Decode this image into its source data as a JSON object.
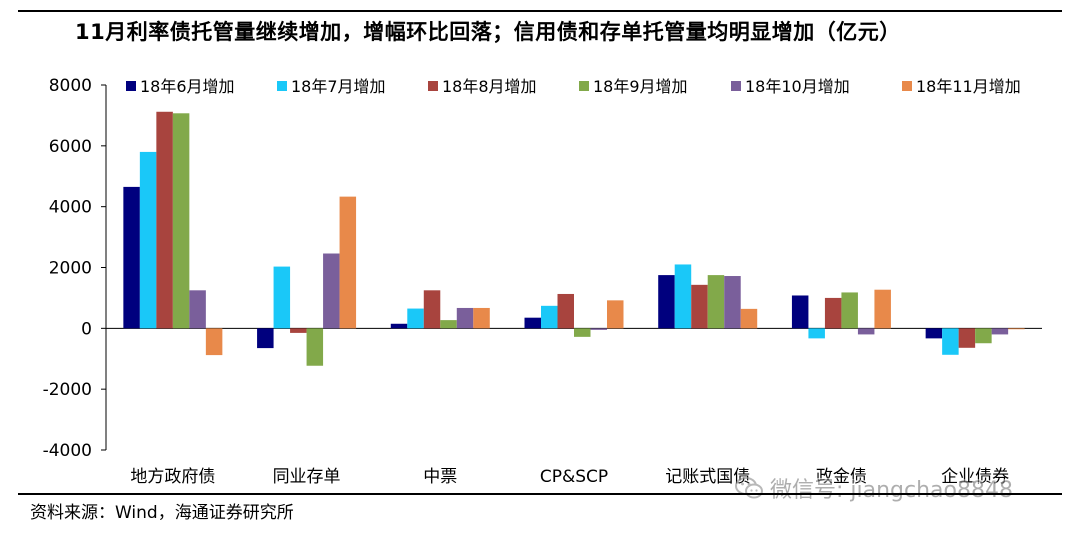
{
  "title": "11月利率债托管量继续增加，增幅环比回落；信用债和存单托管量均明显增加（亿元）",
  "source": "资料来源：Wind，海通证券研究所",
  "watermark": {
    "text": "微信号: jiangchao8848",
    "icon": "wechat-icon"
  },
  "chart_data": {
    "type": "bar",
    "title": "11月利率债托管量继续增加，增幅环比回落；信用债和存单托管量均明显增加（亿元）",
    "xlabel": "",
    "ylabel": "",
    "ylim": [
      -4000,
      8000
    ],
    "yticks": [
      8000,
      6000,
      4000,
      2000,
      0,
      -2000,
      -4000
    ],
    "grid": false,
    "legend": "top",
    "categories": [
      "地方政府债",
      "同业存单",
      "中票",
      "CP&SCP",
      "记账式国债",
      "政金债",
      "企业债券"
    ],
    "series": [
      {
        "name": "18年6月增加",
        "color": "#00007E",
        "values": [
          4650,
          -650,
          150,
          350,
          1750,
          1080,
          -330
        ]
      },
      {
        "name": "18年7月增加",
        "color": "#1AC8F8",
        "values": [
          5800,
          2030,
          650,
          740,
          2100,
          -330,
          -870
        ]
      },
      {
        "name": "18年8月增加",
        "color": "#A8443E",
        "values": [
          7120,
          -150,
          1250,
          1130,
          1430,
          1000,
          -640
        ]
      },
      {
        "name": "18年9月增加",
        "color": "#82A94A",
        "values": [
          7070,
          -1230,
          270,
          -280,
          1750,
          1180,
          -490
        ]
      },
      {
        "name": "18年10月增加",
        "color": "#7A5F9B",
        "values": [
          1250,
          2460,
          670,
          -50,
          1720,
          -200,
          -200
        ]
      },
      {
        "name": "18年11月增加",
        "color": "#E8894A",
        "values": [
          -880,
          4330,
          670,
          920,
          640,
          1270,
          -30
        ]
      }
    ]
  }
}
